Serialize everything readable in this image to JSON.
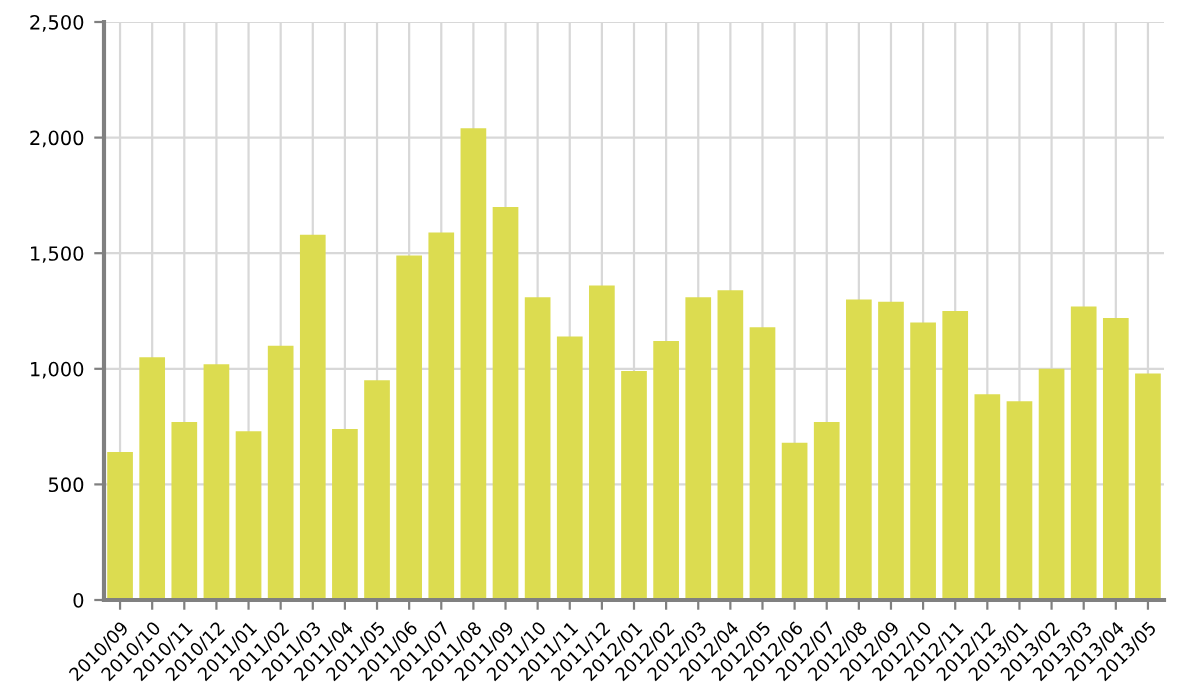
{
  "chart_data": {
    "type": "bar",
    "categories": [
      "2010/09",
      "2010/10",
      "2010/11",
      "2010/12",
      "2011/01",
      "2011/02",
      "2011/03",
      "2011/04",
      "2011/05",
      "2011/06",
      "2011/07",
      "2011/08",
      "2011/09",
      "2011/10",
      "2011/11",
      "2011/12",
      "2012/01",
      "2012/02",
      "2012/03",
      "2012/04",
      "2012/05",
      "2012/06",
      "2012/07",
      "2012/08",
      "2012/09",
      "2012/10",
      "2012/11",
      "2012/12",
      "2013/01",
      "2013/02",
      "2013/03",
      "2013/04",
      "2013/05"
    ],
    "values": [
      640,
      1050,
      770,
      1020,
      730,
      1100,
      1580,
      740,
      950,
      1490,
      1590,
      2040,
      1700,
      1310,
      1140,
      1360,
      990,
      1120,
      1310,
      1340,
      1180,
      680,
      770,
      1300,
      1290,
      1200,
      1250,
      890,
      860,
      1000,
      1270,
      1220,
      980
    ],
    "color": "#dcdc50",
    "ylim": [
      0,
      2500
    ],
    "yticks": [
      {
        "value": 0,
        "label": "0"
      },
      {
        "value": 500,
        "label": "500"
      },
      {
        "value": 1000,
        "label": "1,000"
      },
      {
        "value": 1500,
        "label": "1,500"
      },
      {
        "value": 2000,
        "label": "2,000"
      },
      {
        "value": 2500,
        "label": "2,500"
      }
    ],
    "grid": true
  }
}
